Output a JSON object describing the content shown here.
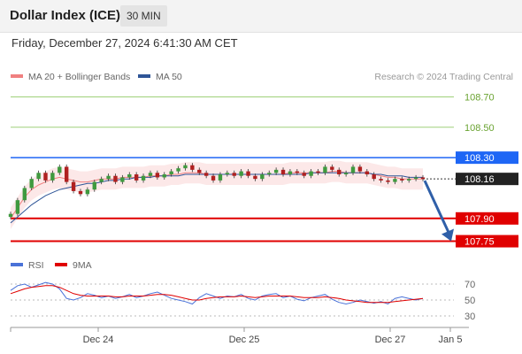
{
  "header": {
    "title": "Dollar Index (ICE)",
    "timeframe": "30 MIN"
  },
  "timestamp": "Friday, December 27, 2024 6:41:30 AM CET",
  "legend": [
    {
      "label": "MA 20 + Bollinger Bands",
      "color": "#f08080"
    },
    {
      "label": "MA 50",
      "color": "#2f5597"
    }
  ],
  "credit": "Research © 2024 Trading Central",
  "rsi_legend": [
    {
      "label": "RSI",
      "color": "#4a72d8"
    },
    {
      "label": "9MA",
      "color": "#e00000"
    }
  ],
  "chart_data": {
    "type": "line",
    "title": "Dollar Index (ICE)",
    "ylim": [
      107.66,
      108.86
    ],
    "last_price": 108.16,
    "levels": [
      {
        "value": 108.7,
        "label": "108.70",
        "kind": "target",
        "color": "#6aa331"
      },
      {
        "value": 108.5,
        "label": "108.50",
        "kind": "target",
        "color": "#6aa331"
      },
      {
        "value": 108.3,
        "label": "108.30",
        "kind": "pivot",
        "color": "#1e66f5"
      },
      {
        "value": 108.16,
        "label": "108.16",
        "kind": "last",
        "color": "#222222"
      },
      {
        "value": 107.9,
        "label": "107.90",
        "kind": "support",
        "color": "#e00000"
      },
      {
        "value": 107.75,
        "label": "107.75",
        "kind": "support",
        "color": "#e00000"
      }
    ],
    "x_ticks": [
      "Dec 24",
      "Dec 25",
      "Dec 27",
      "Jan 5"
    ],
    "price_series": [
      107.93,
      108.02,
      108.1,
      108.16,
      108.2,
      108.15,
      108.2,
      108.24,
      108.14,
      108.08,
      108.06,
      108.09,
      108.14,
      108.16,
      108.18,
      108.14,
      108.17,
      108.19,
      108.15,
      108.18,
      108.2,
      108.17,
      108.19,
      108.21,
      108.23,
      108.25,
      108.22,
      108.2,
      108.18,
      108.15,
      108.19,
      108.2,
      108.18,
      108.21,
      108.18,
      108.16,
      108.19,
      108.2,
      108.22,
      108.19,
      108.21,
      108.2,
      108.18,
      108.21,
      108.2,
      108.24,
      108.22,
      108.19,
      108.2,
      108.24,
      108.21,
      108.19,
      108.16,
      108.15,
      108.14,
      108.16,
      108.15,
      108.16,
      108.17,
      108.16
    ],
    "ma20_series": [
      107.9,
      107.97,
      108.04,
      108.09,
      108.12,
      108.14,
      108.16,
      108.17,
      108.16,
      108.15,
      108.14,
      108.14,
      108.15,
      108.16,
      108.16,
      108.16,
      108.17,
      108.17,
      108.17,
      108.17,
      108.18,
      108.18,
      108.18,
      108.19,
      108.19,
      108.2,
      108.2,
      108.2,
      108.19,
      108.19,
      108.19,
      108.19,
      108.19,
      108.19,
      108.19,
      108.19,
      108.19,
      108.19,
      108.19,
      108.19,
      108.2,
      108.2,
      108.2,
      108.2,
      108.2,
      108.2,
      108.21,
      108.21,
      108.2,
      108.2,
      108.2,
      108.2,
      108.19,
      108.18,
      108.17,
      108.17,
      108.16,
      108.16,
      108.16,
      108.16
    ],
    "ma50_series": [
      107.87,
      107.91,
      107.95,
      107.99,
      108.02,
      108.05,
      108.07,
      108.09,
      108.1,
      108.11,
      108.12,
      108.13,
      108.13,
      108.14,
      108.15,
      108.15,
      108.16,
      108.16,
      108.17,
      108.17,
      108.17,
      108.18,
      108.18,
      108.18,
      108.18,
      108.19,
      108.19,
      108.19,
      108.19,
      108.19,
      108.19,
      108.19,
      108.19,
      108.19,
      108.19,
      108.19,
      108.19,
      108.19,
      108.19,
      108.19,
      108.19,
      108.19,
      108.19,
      108.2,
      108.2,
      108.2,
      108.2,
      108.2,
      108.2,
      108.2,
      108.2,
      108.2,
      108.19,
      108.19,
      108.18,
      108.18,
      108.18,
      108.17,
      108.17,
      108.17
    ],
    "band_width": 0.07,
    "forecast_arrow": {
      "from": 108.16,
      "to": 107.75
    },
    "rsi": {
      "ylim": [
        20,
        80
      ],
      "ticks": [
        70,
        50,
        30
      ],
      "rsi_series": [
        62,
        68,
        70,
        66,
        69,
        72,
        70,
        64,
        52,
        50,
        53,
        58,
        56,
        53,
        55,
        52,
        54,
        57,
        53,
        55,
        58,
        60,
        56,
        52,
        50,
        48,
        45,
        53,
        58,
        55,
        52,
        55,
        54,
        57,
        52,
        50,
        55,
        57,
        58,
        53,
        55,
        51,
        49,
        53,
        55,
        57,
        51,
        47,
        45,
        47,
        50,
        48,
        46,
        48,
        45,
        52,
        54,
        52,
        50,
        52
      ],
      "ma9_series": [
        58,
        61,
        64,
        66,
        67,
        68,
        68,
        66,
        62,
        58,
        56,
        55,
        55,
        55,
        55,
        54,
        54,
        55,
        55,
        55,
        56,
        57,
        57,
        56,
        54,
        52,
        50,
        50,
        52,
        53,
        54,
        54,
        54,
        55,
        54,
        53,
        54,
        55,
        55,
        55,
        55,
        54,
        53,
        53,
        53,
        54,
        53,
        52,
        50,
        49,
        48,
        47,
        47,
        47,
        47,
        48,
        49,
        50,
        51,
        52
      ]
    }
  }
}
